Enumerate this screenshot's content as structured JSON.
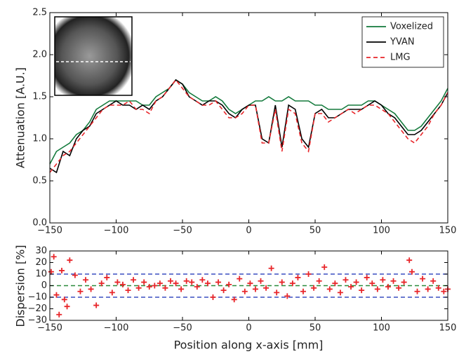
{
  "chart_data": [
    {
      "type": "line",
      "ylabel": "Attenuation [A.U.]",
      "x": [
        -150,
        -145,
        -140,
        -135,
        -130,
        -125,
        -120,
        -115,
        -110,
        -105,
        -100,
        -95,
        -90,
        -85,
        -80,
        -75,
        -70,
        -65,
        -60,
        -55,
        -50,
        -45,
        -40,
        -35,
        -30,
        -25,
        -20,
        -15,
        -10,
        -5,
        0,
        5,
        10,
        15,
        20,
        25,
        30,
        35,
        40,
        45,
        50,
        55,
        60,
        65,
        70,
        75,
        80,
        85,
        90,
        95,
        100,
        105,
        110,
        115,
        120,
        125,
        130,
        135,
        140,
        145,
        150
      ],
      "series": [
        {
          "name": "Voxelized",
          "color": "#137a3c",
          "dash": false,
          "values": [
            0.7,
            0.85,
            0.9,
            0.95,
            1.05,
            1.1,
            1.2,
            1.35,
            1.4,
            1.45,
            1.45,
            1.45,
            1.45,
            1.45,
            1.4,
            1.4,
            1.5,
            1.55,
            1.6,
            1.7,
            1.65,
            1.55,
            1.5,
            1.45,
            1.45,
            1.5,
            1.45,
            1.35,
            1.3,
            1.35,
            1.4,
            1.45,
            1.45,
            1.5,
            1.45,
            1.45,
            1.5,
            1.45,
            1.45,
            1.45,
            1.4,
            1.4,
            1.35,
            1.35,
            1.35,
            1.4,
            1.4,
            1.4,
            1.45,
            1.45,
            1.4,
            1.35,
            1.3,
            1.2,
            1.1,
            1.1,
            1.15,
            1.25,
            1.35,
            1.45,
            1.6
          ]
        },
        {
          "name": "YVAN",
          "color": "#000000",
          "dash": false,
          "values": [
            0.65,
            0.6,
            0.85,
            0.8,
            1.0,
            1.1,
            1.15,
            1.3,
            1.35,
            1.4,
            1.45,
            1.4,
            1.4,
            1.35,
            1.4,
            1.35,
            1.45,
            1.5,
            1.6,
            1.7,
            1.65,
            1.5,
            1.45,
            1.4,
            1.45,
            1.45,
            1.4,
            1.3,
            1.25,
            1.35,
            1.4,
            1.4,
            1.0,
            0.95,
            1.4,
            0.9,
            1.4,
            1.35,
            1.0,
            0.9,
            1.3,
            1.35,
            1.25,
            1.25,
            1.3,
            1.35,
            1.35,
            1.35,
            1.4,
            1.45,
            1.4,
            1.3,
            1.25,
            1.15,
            1.05,
            1.05,
            1.1,
            1.2,
            1.3,
            1.4,
            1.55
          ]
        },
        {
          "name": "LMG",
          "color": "#e8262a",
          "dash": true,
          "values": [
            0.6,
            0.7,
            0.8,
            0.85,
            0.95,
            1.05,
            1.15,
            1.25,
            1.35,
            1.4,
            1.4,
            1.4,
            1.45,
            1.35,
            1.35,
            1.3,
            1.45,
            1.5,
            1.6,
            1.7,
            1.6,
            1.5,
            1.45,
            1.4,
            1.4,
            1.45,
            1.35,
            1.25,
            1.25,
            1.3,
            1.4,
            1.4,
            0.95,
            0.95,
            1.35,
            0.85,
            1.35,
            1.3,
            0.95,
            0.85,
            1.3,
            1.3,
            1.2,
            1.25,
            1.3,
            1.35,
            1.3,
            1.35,
            1.4,
            1.4,
            1.35,
            1.3,
            1.2,
            1.1,
            1.0,
            0.95,
            1.05,
            1.15,
            1.3,
            1.4,
            1.55
          ]
        }
      ],
      "legend": "upper right",
      "xlim": [
        -150,
        150
      ],
      "xticks": [
        {
          "value": -150,
          "label": "−150"
        },
        {
          "value": -100,
          "label": "−100"
        },
        {
          "value": -50,
          "label": "−50"
        },
        0,
        50,
        100,
        150
      ],
      "ylim": [
        0,
        2.5
      ],
      "yticks": [
        {
          "value": 0,
          "label": "0.0"
        },
        0.5,
        {
          "value": 1,
          "label": "1.0"
        },
        1.5,
        {
          "value": 2,
          "label": "2.0"
        },
        2.5
      ]
    },
    {
      "type": "scatter",
      "ylabel": "Dispersion [%]",
      "xlabel": "Position along x-axis [mm]",
      "color": "#e8262a",
      "x": [
        -149,
        -147,
        -145,
        -143,
        -141,
        -139,
        -137,
        -135,
        -131,
        -127,
        -123,
        -119,
        -115,
        -111,
        -107,
        -103,
        -99,
        -95,
        -91,
        -87,
        -83,
        -79,
        -75,
        -71,
        -67,
        -63,
        -59,
        -55,
        -51,
        -47,
        -43,
        -39,
        -35,
        -31,
        -27,
        -23,
        -19,
        -15,
        -11,
        -7,
        -3,
        1,
        5,
        9,
        13,
        17,
        21,
        25,
        29,
        33,
        37,
        41,
        45,
        49,
        53,
        57,
        61,
        65,
        69,
        73,
        77,
        81,
        85,
        89,
        93,
        97,
        101,
        105,
        109,
        113,
        117,
        121,
        123,
        127,
        131,
        135,
        139,
        143,
        147,
        150
      ],
      "y": [
        12,
        25,
        -8,
        -25,
        13,
        -12,
        -18,
        22,
        9,
        -5,
        5,
        -3,
        -17,
        2,
        7,
        -6,
        3,
        1,
        -4,
        5,
        -2,
        3,
        -1,
        0,
        2,
        -2,
        4,
        2,
        -3,
        4,
        3,
        -1,
        5,
        2,
        -10,
        3,
        -4,
        1,
        -12,
        6,
        -5,
        2,
        -3,
        4,
        -2,
        15,
        -6,
        3,
        -9,
        2,
        7,
        -5,
        10,
        -2,
        4,
        16,
        -3,
        2,
        -6,
        5,
        -1,
        3,
        -4,
        7,
        2,
        -3,
        5,
        -1,
        4,
        -2,
        3,
        22,
        12,
        -5,
        6,
        -3,
        4,
        -2,
        -5,
        -3
      ],
      "reference_lines": [
        {
          "y": 10,
          "color": "#3a4fc0"
        },
        {
          "y": -10,
          "color": "#3a4fc0"
        },
        {
          "y": 0,
          "color": "#2a8a3a"
        }
      ],
      "xlim": [
        -150,
        150
      ],
      "xticks": [
        {
          "value": -150,
          "label": "−150"
        },
        {
          "value": -100,
          "label": "−100"
        },
        {
          "value": -50,
          "label": "−50"
        },
        0,
        50,
        100,
        150
      ],
      "ylim": [
        -30,
        30
      ],
      "yticks": [
        {
          "value": -30,
          "label": "−30"
        },
        {
          "value": -20,
          "label": "−20"
        },
        {
          "value": -10,
          "label": "−10"
        },
        0,
        10,
        20,
        30
      ]
    }
  ]
}
